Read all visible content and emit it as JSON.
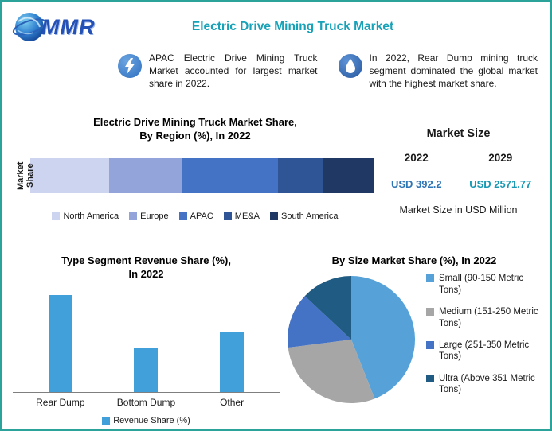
{
  "frame_color": "#2ba39b",
  "header": {
    "logo_text": "MMR",
    "title": "Electric Drive Mining Truck Market",
    "title_color": "#17a2b8"
  },
  "callouts": [
    {
      "icon": "lightning-icon",
      "icon_color": "#2f6fc0",
      "text": "APAC Electric Drive Mining Truck Market accounted for largest market share in 2022."
    },
    {
      "icon": "water-drop-icon",
      "icon_color": "#27579f",
      "text": "In 2022, Rear Dump mining truck segment dominated the global market with the highest market share."
    }
  ],
  "market_size": {
    "title": "Market Size",
    "columns": [
      {
        "year": "2022",
        "value": "USD 392.2",
        "value_color": "#2e75b6"
      },
      {
        "year": "2029",
        "value": "USD 2571.77",
        "value_color": "#1799b4"
      }
    ],
    "caption": "Market Size in USD Million"
  },
  "chart_data": [
    {
      "id": "region-share",
      "type": "bar",
      "variant": "stacked-horizontal",
      "title": "Electric Drive Mining Truck Market Share, By Region (%), In 2022",
      "title_lines": [
        "Electric Drive Mining Truck Market Share,",
        "By Region (%), In 2022"
      ],
      "ylabel": "Market Share",
      "xlim": [
        0,
        100
      ],
      "legend_position": "bottom",
      "series": [
        {
          "name": "North America",
          "value": 23,
          "color": "#cdd4ef"
        },
        {
          "name": "Europe",
          "value": 21,
          "color": "#93a4db"
        },
        {
          "name": "APAC",
          "value": 28,
          "color": "#4472c4"
        },
        {
          "name": "ME&A",
          "value": 13,
          "color": "#2f5597"
        },
        {
          "name": "South America",
          "value": 15,
          "color": "#203864"
        }
      ]
    },
    {
      "id": "type-revenue",
      "type": "bar",
      "variant": "vertical",
      "title": "Type Segment Revenue Share (%), In 2022",
      "title_lines": [
        "Type Segment Revenue Share (%),",
        "In 2022"
      ],
      "categories": [
        "Rear Dump",
        "Bottom Dump",
        "Other"
      ],
      "values": [
        48,
        22,
        30
      ],
      "ylim": [
        0,
        50
      ],
      "bar_color": "#41a0da",
      "legend": "Revenue Share (%)",
      "legend_position": "bottom"
    },
    {
      "id": "size-share",
      "type": "pie",
      "title": "By Size Market Share (%), In 2022",
      "legend_position": "right",
      "slices": [
        {
          "name": "Small (90-150 Metric Tons)",
          "value": 44,
          "color": "#56a2d8"
        },
        {
          "name": "Medium (151-250 Metric Tons)",
          "value": 29,
          "color": "#a6a6a6"
        },
        {
          "name": "Large (251-350 Metric Tons)",
          "value": 14,
          "color": "#4472c4"
        },
        {
          "name": "Ultra (Above 351 Metric Tons)",
          "value": 13,
          "color": "#1f5b82"
        }
      ]
    }
  ]
}
